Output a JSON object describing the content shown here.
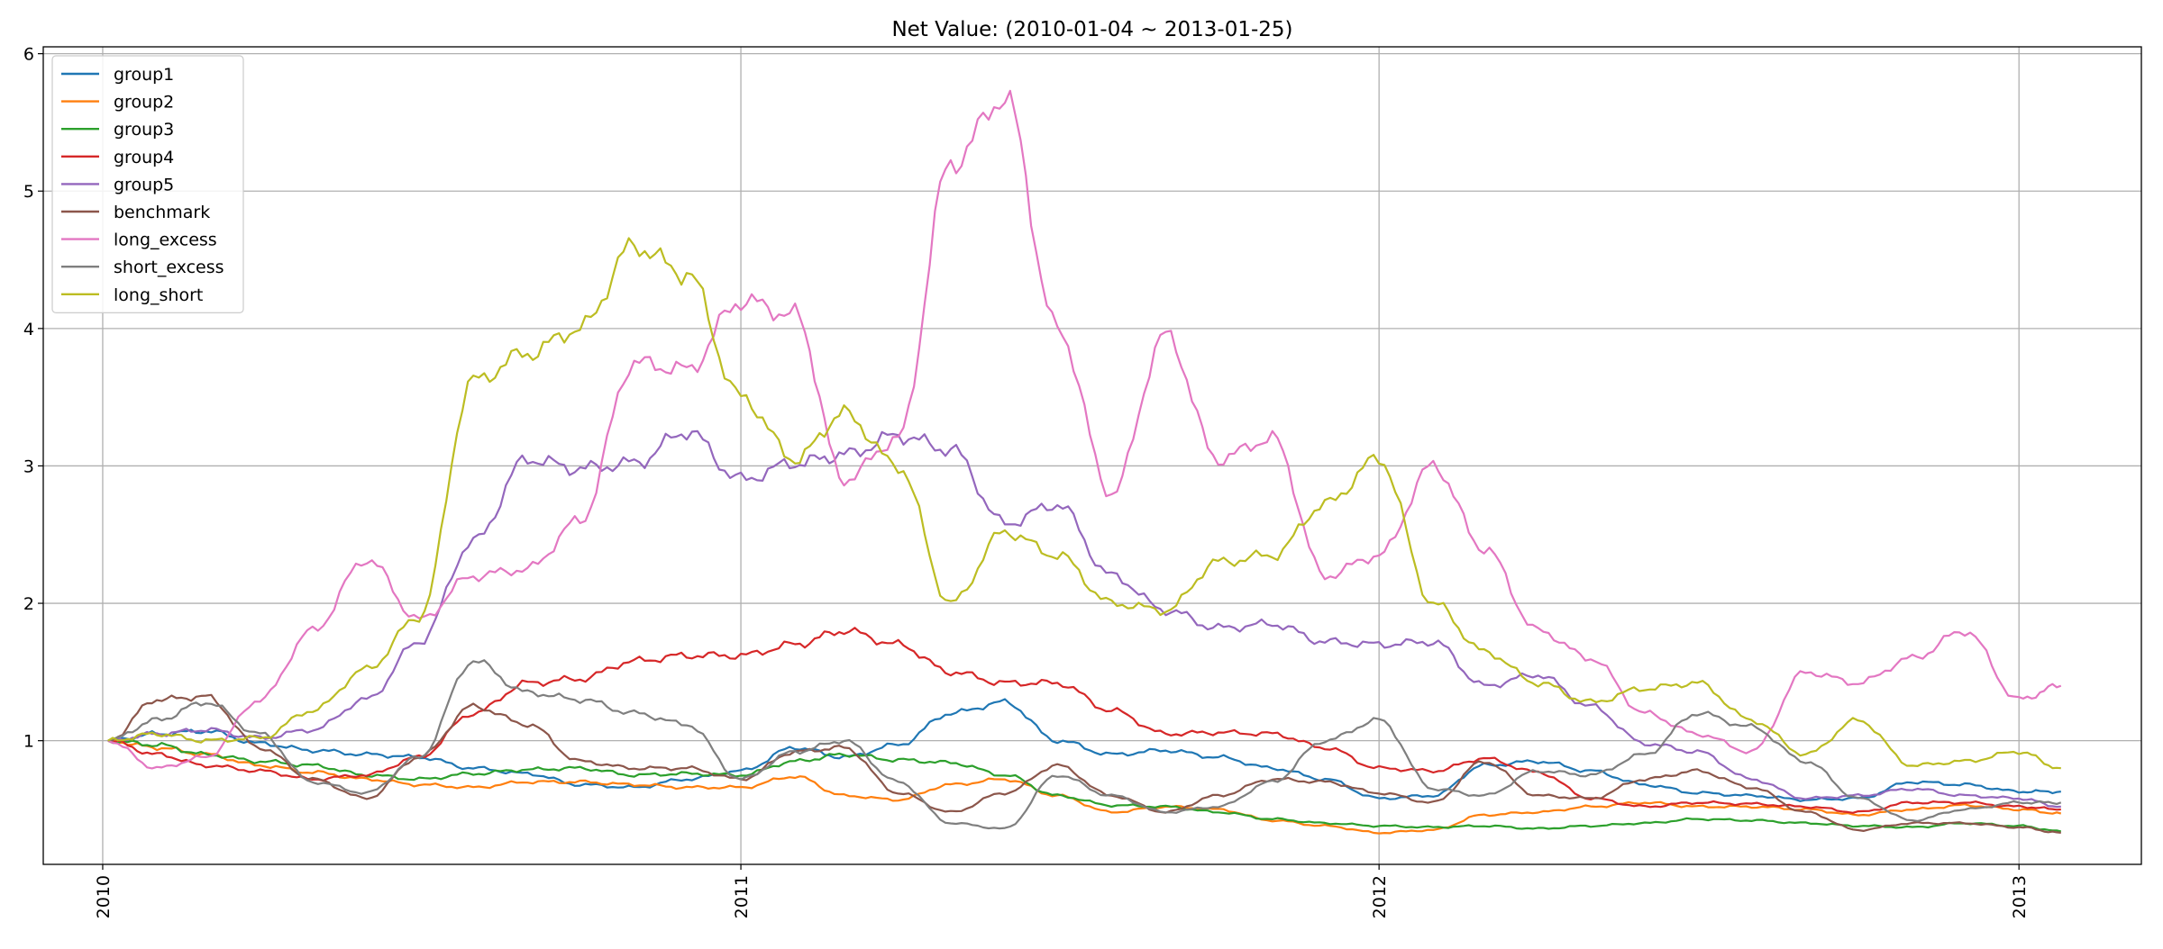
{
  "chart_data": {
    "type": "line",
    "title": "Net Value: (2010-01-04 ~ 2013-01-25)",
    "xlabel": "",
    "ylabel": "",
    "x_range": [
      "2009-11-28",
      "2013-03-12"
    ],
    "ylim": [
      0.1,
      6.05
    ],
    "x_ticks": [
      {
        "date": "2010-01-01",
        "label": "2010"
      },
      {
        "date": "2011-01-01",
        "label": "2011"
      },
      {
        "date": "2012-01-01",
        "label": "2012"
      },
      {
        "date": "2013-01-01",
        "label": "2013"
      }
    ],
    "y_ticks": [
      1,
      2,
      3,
      4,
      5,
      6
    ],
    "grid": true,
    "legend_position": "upper-left",
    "x": [
      "2010-01-04",
      "2010-02-01",
      "2010-03-01",
      "2010-04-01",
      "2010-05-01",
      "2010-06-01",
      "2010-07-01",
      "2010-08-01",
      "2010-09-01",
      "2010-10-01",
      "2010-11-01",
      "2010-12-01",
      "2011-01-01",
      "2011-02-01",
      "2011-03-01",
      "2011-04-01",
      "2011-05-01",
      "2011-06-01",
      "2011-07-01",
      "2011-08-01",
      "2011-09-01",
      "2011-10-01",
      "2011-11-01",
      "2011-12-01",
      "2012-01-01",
      "2012-02-01",
      "2012-03-01",
      "2012-04-01",
      "2012-05-01",
      "2012-06-01",
      "2012-07-01",
      "2012-08-01",
      "2012-09-01",
      "2012-10-01",
      "2012-11-01",
      "2012-12-01",
      "2013-01-01",
      "2013-01-25"
    ],
    "series": [
      {
        "name": "group1",
        "color": "#1f77b4",
        "values": [
          1.0,
          1.05,
          1.07,
          0.98,
          0.93,
          0.9,
          0.88,
          0.8,
          0.76,
          0.68,
          0.66,
          0.72,
          0.78,
          0.95,
          0.88,
          0.97,
          1.2,
          1.28,
          1.0,
          0.9,
          0.93,
          0.88,
          0.8,
          0.72,
          0.58,
          0.6,
          0.82,
          0.85,
          0.78,
          0.68,
          0.62,
          0.6,
          0.57,
          0.58,
          0.7,
          0.68,
          0.63,
          0.63
        ]
      },
      {
        "name": "group2",
        "color": "#ff7f0e",
        "values": [
          1.0,
          0.95,
          0.9,
          0.82,
          0.77,
          0.72,
          0.68,
          0.66,
          0.7,
          0.7,
          0.68,
          0.66,
          0.66,
          0.74,
          0.6,
          0.57,
          0.68,
          0.72,
          0.6,
          0.48,
          0.52,
          0.5,
          0.42,
          0.38,
          0.33,
          0.35,
          0.46,
          0.48,
          0.52,
          0.55,
          0.52,
          0.52,
          0.5,
          0.46,
          0.5,
          0.53,
          0.5,
          0.47
        ]
      },
      {
        "name": "group3",
        "color": "#2ca02c",
        "values": [
          1.0,
          0.97,
          0.9,
          0.85,
          0.82,
          0.75,
          0.72,
          0.76,
          0.79,
          0.8,
          0.75,
          0.76,
          0.75,
          0.85,
          0.9,
          0.86,
          0.84,
          0.75,
          0.6,
          0.53,
          0.52,
          0.48,
          0.43,
          0.4,
          0.38,
          0.37,
          0.38,
          0.36,
          0.38,
          0.4,
          0.43,
          0.42,
          0.4,
          0.38,
          0.37,
          0.4,
          0.38,
          0.34
        ]
      },
      {
        "name": "group4",
        "color": "#d62728",
        "values": [
          1.0,
          0.9,
          0.82,
          0.78,
          0.72,
          0.75,
          0.88,
          1.2,
          1.42,
          1.45,
          1.58,
          1.62,
          1.62,
          1.7,
          1.8,
          1.7,
          1.5,
          1.42,
          1.42,
          1.22,
          1.05,
          1.06,
          1.05,
          0.95,
          0.8,
          0.78,
          0.87,
          0.77,
          0.58,
          0.52,
          0.55,
          0.54,
          0.52,
          0.48,
          0.55,
          0.55,
          0.52,
          0.5
        ]
      },
      {
        "name": "group5",
        "color": "#9467bd",
        "values": [
          1.0,
          1.05,
          1.08,
          1.02,
          1.08,
          1.3,
          1.72,
          2.45,
          3.05,
          2.98,
          3.02,
          3.25,
          2.9,
          3.02,
          3.08,
          3.22,
          3.12,
          2.58,
          2.72,
          2.2,
          1.95,
          1.82,
          1.85,
          1.72,
          1.7,
          1.72,
          1.4,
          1.48,
          1.25,
          0.98,
          0.92,
          0.72,
          0.58,
          0.6,
          0.65,
          0.6,
          0.58,
          0.52
        ]
      },
      {
        "name": "benchmark",
        "color": "#8c564b",
        "values": [
          1.0,
          1.3,
          1.32,
          0.95,
          0.72,
          0.58,
          0.88,
          1.25,
          1.12,
          0.85,
          0.8,
          0.8,
          0.72,
          0.92,
          0.95,
          0.62,
          0.48,
          0.62,
          0.82,
          0.6,
          0.48,
          0.6,
          0.72,
          0.7,
          0.62,
          0.55,
          0.85,
          0.6,
          0.58,
          0.72,
          0.78,
          0.66,
          0.48,
          0.35,
          0.4,
          0.4,
          0.37,
          0.33
        ]
      },
      {
        "name": "long_excess",
        "color": "#e377c2",
        "values": [
          1.0,
          0.8,
          0.88,
          1.3,
          1.8,
          2.32,
          1.88,
          2.2,
          2.25,
          2.6,
          3.75,
          3.7,
          4.2,
          4.1,
          2.9,
          3.2,
          5.2,
          5.68,
          4.0,
          2.8,
          3.95,
          3.05,
          3.2,
          2.2,
          2.35,
          3.0,
          2.4,
          1.8,
          1.6,
          1.2,
          1.05,
          0.92,
          1.5,
          1.42,
          1.6,
          1.8,
          1.3,
          1.4
        ]
      },
      {
        "name": "short_excess",
        "color": "#7f7f7f",
        "values": [
          1.0,
          1.15,
          1.28,
          1.05,
          0.7,
          0.62,
          0.88,
          1.58,
          1.35,
          1.3,
          1.2,
          1.12,
          0.72,
          0.92,
          1.0,
          0.7,
          0.4,
          0.36,
          0.75,
          0.6,
          0.48,
          0.52,
          0.7,
          1.0,
          1.15,
          0.65,
          0.6,
          0.78,
          0.75,
          0.9,
          1.2,
          1.1,
          0.85,
          0.58,
          0.42,
          0.5,
          0.55,
          0.55
        ]
      },
      {
        "name": "long_short",
        "color": "#bcbd22",
        "values": [
          1.0,
          1.05,
          1.0,
          1.02,
          1.22,
          1.52,
          1.9,
          3.62,
          3.82,
          4.0,
          4.6,
          4.4,
          3.5,
          3.05,
          3.38,
          3.0,
          2.0,
          2.52,
          2.35,
          2.0,
          1.95,
          2.3,
          2.35,
          2.72,
          3.05,
          2.0,
          1.65,
          1.42,
          1.28,
          1.38,
          1.42,
          1.15,
          0.9,
          1.15,
          0.82,
          0.85,
          0.92,
          0.8
        ]
      }
    ]
  }
}
